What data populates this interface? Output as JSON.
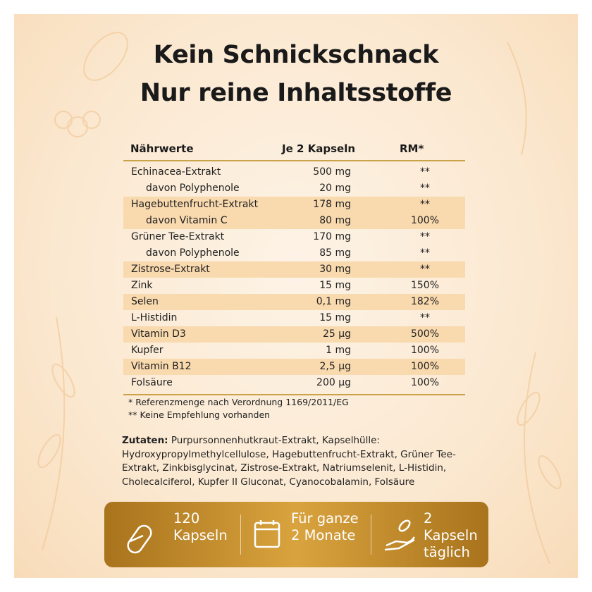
{
  "title": [
    "Kein Schnickschnack",
    "Nur reine Inhaltsstoffe"
  ],
  "table": {
    "header": [
      "Nährwerte",
      "Je 2 Kapseln",
      "RM*"
    ],
    "rows": [
      {
        "name": "Echinacea-Extrakt",
        "amount": "500 mg",
        "rm": "**",
        "sub": [
          {
            "name": "davon Polyphenole",
            "amount": "20 mg",
            "rm": "**"
          }
        ]
      },
      {
        "name": "Hagebuttenfrucht-Extrakt",
        "amount": "178 mg",
        "rm": "**",
        "sub": [
          {
            "name": "davon Vitamin C",
            "amount": "80 mg",
            "rm": "100%"
          }
        ]
      },
      {
        "name": "Grüner Tee-Extrakt",
        "amount": "170 mg",
        "rm": "**",
        "sub": [
          {
            "name": "davon Polyphenole",
            "amount": "85 mg",
            "rm": "**"
          }
        ]
      },
      {
        "name": "Zistrose-Extrakt",
        "amount": "30 mg",
        "rm": "**"
      },
      {
        "name": "Zink",
        "amount": "15 mg",
        "rm": "150%"
      },
      {
        "name": "Selen",
        "amount": "0,1 mg",
        "rm": "182%"
      },
      {
        "name": "L-Histidin",
        "amount": "15 mg",
        "rm": "**"
      },
      {
        "name": "Vitamin D3",
        "amount": "25 µg",
        "rm": "500%"
      },
      {
        "name": "Kupfer",
        "amount": "1 mg",
        "rm": "100%"
      },
      {
        "name": "Vitamin B12",
        "amount": "2,5 µg",
        "rm": "100%"
      },
      {
        "name": "Folsäure",
        "amount": "200 µg",
        "rm": "100%"
      }
    ]
  },
  "footnotes": [
    "* Referenzmenge nach Verordnung 1169/2011/EG",
    "** Keine Empfehlung vorhanden"
  ],
  "ingredients": {
    "label": "Zutaten:",
    "text": "Purpursonnenhutkraut-Extrakt, Kapselhülle: Hydroxypropylmethylcellulose, Hagebuttenfrucht-Extrakt, Grüner Tee-Extrakt, Zinkbisglycinat, Zistrose-Extrakt, Natriumselenit, L-Histidin, Cholecalciferol, Kupfer II Gluconat, Cyanocobalamin, Folsäure"
  },
  "info": [
    [
      "120",
      "Kapseln"
    ],
    [
      "Für ganze",
      "2 Monate"
    ],
    [
      "2 Kapseln",
      "täglich"
    ]
  ]
}
